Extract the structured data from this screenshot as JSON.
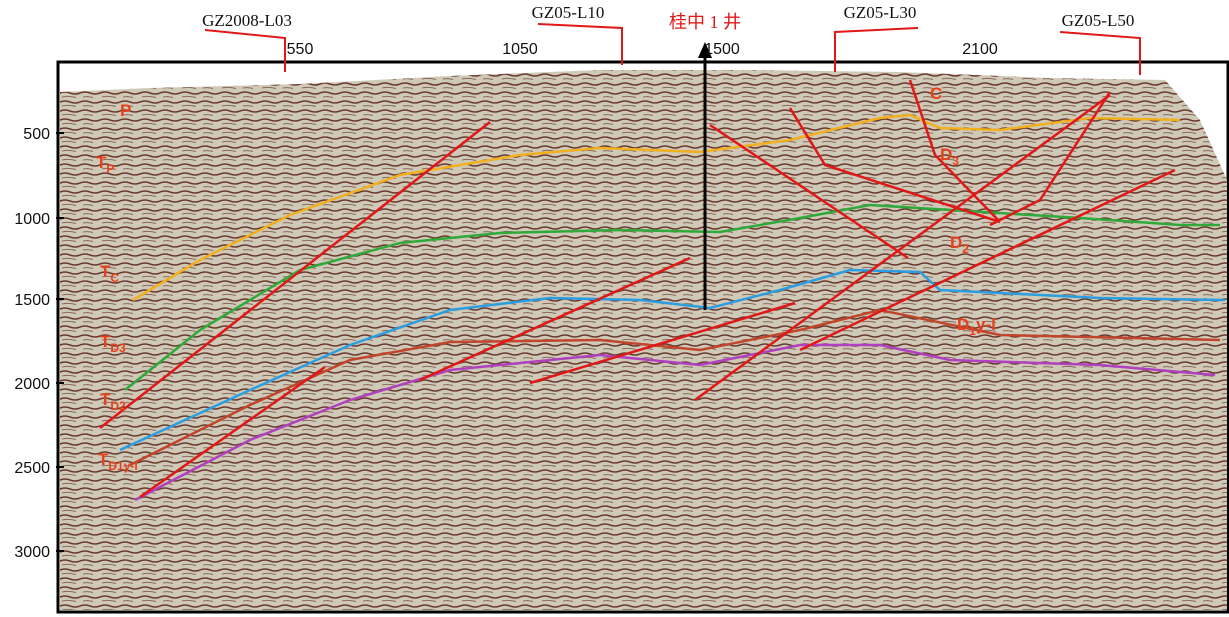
{
  "survey_lines": [
    "GZ2008-L03",
    "GZ05-L10",
    "GZ05-L30",
    "GZ05-L50"
  ],
  "well": "桂中 1 井",
  "trace_labels": [
    550,
    1050,
    1500,
    2100
  ],
  "time_labels": [
    500,
    1000,
    1500,
    2000,
    2500,
    3000
  ],
  "horizon_labels": [
    {
      "main": "P"
    },
    {
      "main": "T",
      "sub": "P"
    },
    {
      "main": "T",
      "sub": "C"
    },
    {
      "main": "T",
      "sub": "D3"
    },
    {
      "main": "T",
      "sub": "D2"
    },
    {
      "main": "T",
      "sub": "D1y-l"
    },
    {
      "main": "C"
    },
    {
      "main": "D",
      "sub": "3"
    },
    {
      "main": "D",
      "sub": "2"
    },
    {
      "main": "D",
      "sub": "1",
      "rest": "y-l"
    }
  ]
}
